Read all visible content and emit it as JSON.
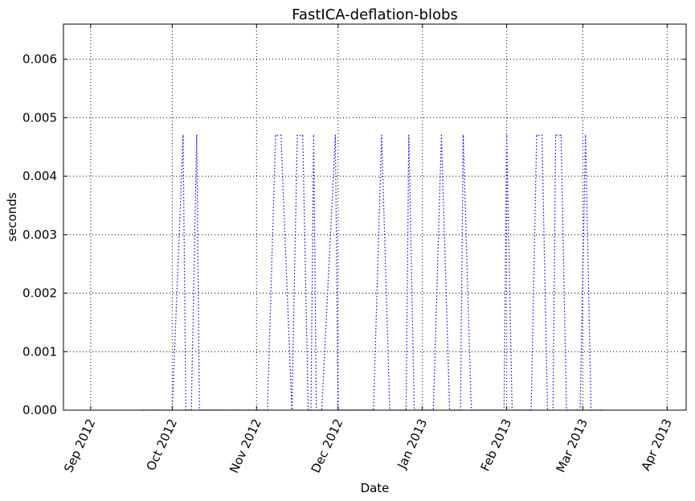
{
  "chart_data": {
    "type": "line",
    "title": "FastICA-deflation-blobs",
    "xlabel": "Date",
    "ylabel": "seconds",
    "xlim": [
      "2012-08-22",
      "2013-04-08"
    ],
    "ylim": [
      0,
      0.0066
    ],
    "grid": true,
    "line_style": "dotted",
    "line_color": "#0000ff",
    "x_ticks": [
      {
        "date": "2012-09-01",
        "label": "Sep 2012"
      },
      {
        "date": "2012-10-01",
        "label": "Oct 2012"
      },
      {
        "date": "2012-11-01",
        "label": "Nov 2012"
      },
      {
        "date": "2012-12-01",
        "label": "Dec 2012"
      },
      {
        "date": "2013-01-01",
        "label": "Jan 2013"
      },
      {
        "date": "2013-02-01",
        "label": "Feb 2013"
      },
      {
        "date": "2013-03-01",
        "label": "Mar 2013"
      },
      {
        "date": "2013-04-01",
        "label": "Apr 2013"
      }
    ],
    "y_ticks": [
      {
        "value": 0.0,
        "label": "0.000"
      },
      {
        "value": 0.001,
        "label": "0.001"
      },
      {
        "value": 0.002,
        "label": "0.002"
      },
      {
        "value": 0.003,
        "label": "0.003"
      },
      {
        "value": 0.004,
        "label": "0.004"
      },
      {
        "value": 0.005,
        "label": "0.005"
      },
      {
        "value": 0.006,
        "label": "0.006"
      }
    ],
    "series": [
      {
        "x": [
          "2012-09-20",
          "2012-10-01",
          "2012-10-05",
          "2012-10-06",
          "2012-10-07",
          "2012-10-08",
          "2012-10-10",
          "2012-10-11",
          "2012-10-12",
          "2012-10-14",
          "2012-11-05",
          "2012-11-08",
          "2012-11-10",
          "2012-11-14",
          "2012-11-16",
          "2012-11-18",
          "2012-11-20",
          "2012-11-21",
          "2012-11-22",
          "2012-11-23",
          "2012-11-25",
          "2012-11-30",
          "2012-12-01",
          "2012-12-03",
          "2012-12-14",
          "2012-12-17",
          "2012-12-20",
          "2012-12-26",
          "2012-12-27",
          "2012-12-29",
          "2013-01-05",
          "2013-01-08",
          "2013-01-11",
          "2013-01-15",
          "2013-01-16",
          "2013-01-19",
          "2013-01-31",
          "2013-02-01",
          "2013-02-03",
          "2013-02-10",
          "2013-02-12",
          "2013-02-14",
          "2013-02-16",
          "2013-02-18",
          "2013-02-19",
          "2013-02-21",
          "2013-02-23",
          "2013-02-28",
          "2013-03-02",
          "2013-03-04",
          "2013-03-08"
        ],
        "y": [
          0,
          0,
          0.0047,
          0,
          0,
          0,
          0.0047,
          0,
          0,
          0,
          0,
          0.0047,
          0.0047,
          0,
          0.0047,
          0.0047,
          0,
          0,
          0.0047,
          0,
          0,
          0.0047,
          0,
          0,
          0,
          0.0047,
          0,
          0,
          0.0047,
          0,
          0,
          0.0047,
          0,
          0,
          0.0047,
          0,
          0,
          0.0047,
          0,
          0,
          0.0047,
          0.0047,
          0,
          0,
          0.0047,
          0.0047,
          0,
          0,
          0.0047,
          0,
          0
        ]
      }
    ]
  }
}
